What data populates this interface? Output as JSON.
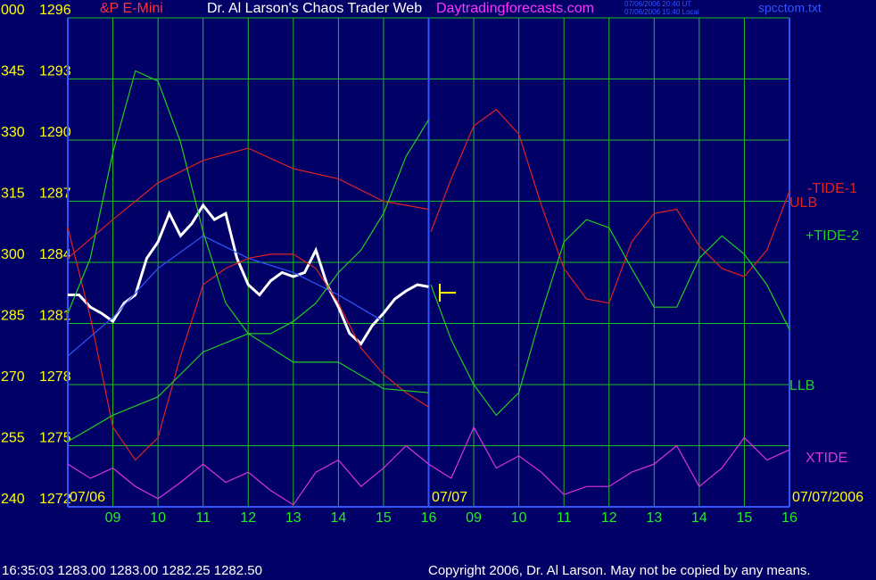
{
  "chart_data": {
    "type": "line",
    "title": "Dr. Al Larson's Chaos Trader Web",
    "instrument": "&P E-Mini",
    "site": "Daytradingforecasts.com",
    "timestamps": [
      "07/06/2006 20:40 UT",
      "07/06/2006 15:40 Local"
    ],
    "file": "spcctom.txt",
    "status": "16:35:03  1283.00 1283.00 1282.25 1282.50",
    "copyright": "Copyright 2006, Dr. Al Larson. May not be copied by any means.",
    "date_labels": [
      "07/06",
      "07/07",
      "07/07/2006"
    ],
    "xlim": [
      8,
      24
    ],
    "xticks": [
      {
        "value": 9,
        "label": "09"
      },
      10,
      11,
      12,
      13,
      14,
      15,
      16,
      {
        "value": 17,
        "label": "09"
      },
      {
        "value": 18,
        "label": "10"
      },
      {
        "value": 19,
        "label": "11"
      },
      {
        "value": 20,
        "label": "12"
      },
      {
        "value": 21,
        "label": "13"
      },
      {
        "value": 22,
        "label": "14"
      },
      {
        "value": 23,
        "label": "15"
      },
      {
        "value": 24,
        "label": "16"
      }
    ],
    "ylim": [
      1272,
      1296
    ],
    "yticks": [
      1272,
      1275,
      1278,
      1281,
      1284,
      1287,
      1290,
      1293,
      1296
    ],
    "angle_labels": [
      "240",
      "255",
      "270",
      "285",
      "300",
      "315",
      "330",
      "345",
      "000"
    ],
    "grid": true,
    "series": [
      {
        "color": "#ffffff",
        "x": [
          8,
          8.25,
          8.5,
          8.75,
          9,
          9.25,
          9.5,
          9.75,
          10,
          10.25,
          10.5,
          10.75,
          11,
          11.25,
          11.5,
          11.75,
          12,
          12.25,
          12.5,
          12.75,
          13,
          13.25,
          13.5,
          13.75,
          14,
          14.25,
          14.5,
          14.75,
          15,
          15.25,
          15.5,
          15.75,
          16
        ],
        "values": [
          1282.4,
          1282.4,
          1281.8,
          1281.5,
          1281.1,
          1282,
          1282.4,
          1284.2,
          1285,
          1286.4,
          1285.3,
          1285.9,
          1286.8,
          1286.1,
          1286.4,
          1284.2,
          1282.9,
          1282.4,
          1283.1,
          1283.5,
          1283.3,
          1283.5,
          1284.6,
          1282.9,
          1281.8,
          1280.5,
          1280,
          1280.9,
          1281.5,
          1282.2,
          1282.6,
          1282.9,
          1282.8
        ]
      },
      {
        "color": "#3355ff",
        "x": [
          8,
          9,
          10,
          11,
          12,
          13,
          14,
          15
        ],
        "values": [
          1279.4,
          1281.3,
          1283.7,
          1285.3,
          1284.2,
          1283.5,
          1282.4,
          1281.1
        ]
      },
      {
        "name": "-TIDE-1",
        "color": "#dd2222",
        "x": [
          8,
          8.5,
          9,
          9.5,
          10,
          10.5,
          11,
          11.5,
          12,
          12.5,
          13,
          13.5,
          14,
          14.5,
          15,
          15.5,
          16,
          16.02,
          16.05,
          16.5,
          17,
          17.5,
          18,
          18.5,
          19,
          19.5,
          20,
          20.5,
          21,
          21.5,
          22,
          22.5,
          23,
          23.5,
          24
        ],
        "values": [
          1285.7,
          1281.3,
          1275.9,
          1274.3,
          1275.4,
          1279.4,
          1282.9,
          1283.7,
          1284.2,
          1284.4,
          1284.4,
          1283.7,
          1282,
          1279.8,
          1278.5,
          1277.6,
          1276.9,
          null,
          1285.5,
          1288.1,
          1290.7,
          1291.5,
          1290.3,
          1286.8,
          1283.7,
          1282.2,
          1282,
          1285,
          1286.4,
          1286.6,
          1284.8,
          1283.7,
          1283.3,
          1284.6,
          1287.5
        ]
      },
      {
        "name": "ULB",
        "color": "#dd2222",
        "x": [
          8,
          9,
          10,
          11,
          12,
          13,
          14,
          15,
          16
        ],
        "values": [
          1284.2,
          1286.1,
          1287.9,
          1289,
          1289.6,
          1288.6,
          1288.1,
          1287,
          1286.6
        ]
      },
      {
        "name": "+TIDE-2",
        "color": "#22cc22",
        "x": [
          8,
          8.5,
          9,
          9.5,
          10,
          10.5,
          11,
          11.5,
          12,
          12.5,
          13,
          13.5,
          14,
          14.5,
          15,
          15.5,
          16,
          16.02,
          16.05,
          16.5,
          17,
          17.5,
          18,
          18.5,
          19,
          19.5,
          20,
          20.5,
          21,
          21.5,
          22,
          22.5,
          23,
          23.5,
          24
        ],
        "values": [
          1281.5,
          1284.2,
          1289.4,
          1293.4,
          1292.9,
          1289.9,
          1285.5,
          1282,
          1280.5,
          1280.5,
          1281.1,
          1282,
          1283.5,
          1284.6,
          1286.4,
          1289.2,
          1291,
          null,
          1282.9,
          1280.2,
          1278,
          1276.5,
          1277.6,
          1281.5,
          1285,
          1286.1,
          1285.7,
          1283.7,
          1281.8,
          1281.8,
          1284.2,
          1285.3,
          1284.4,
          1282.9,
          1280.7
        ]
      },
      {
        "name": "LLB",
        "color": "#22cc22",
        "x": [
          8,
          9,
          10,
          11,
          12,
          13,
          14,
          15,
          16
        ],
        "values": [
          1275.2,
          1276.5,
          1277.4,
          1279.6,
          1280.5,
          1279.1,
          1279.1,
          1277.8,
          1277.6
        ]
      },
      {
        "name": "XTIDE",
        "color": "#dd33dd",
        "x": [
          8,
          8.5,
          9,
          9.5,
          10,
          10.5,
          11,
          11.5,
          12,
          12.5,
          13,
          13.5,
          14,
          14.5,
          15,
          15.5,
          16,
          16.5,
          17,
          17.5,
          18,
          18.5,
          19,
          19.5,
          20,
          20.5,
          21,
          21.5,
          22,
          22.5,
          23,
          23.5,
          24
        ],
        "values": [
          1274.1,
          1273.4,
          1273.9,
          1273,
          1272.4,
          1273.2,
          1274.1,
          1273.2,
          1273.7,
          1272.8,
          1272.1,
          1273.7,
          1274.3,
          1273,
          1273.9,
          1275,
          1274.1,
          1273.4,
          1275.9,
          1273.9,
          1274.5,
          1273.7,
          1272.6,
          1273,
          1273,
          1273.7,
          1274.1,
          1275,
          1273,
          1273.9,
          1275.4,
          1274.3,
          1274.8
        ]
      }
    ]
  }
}
